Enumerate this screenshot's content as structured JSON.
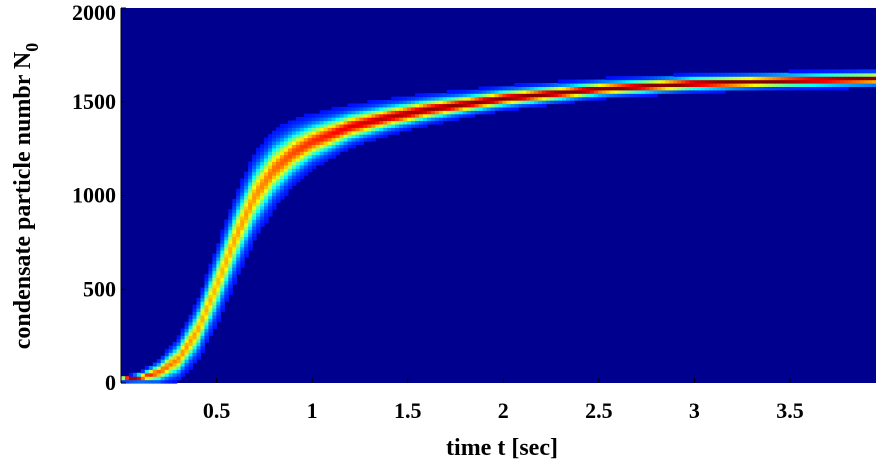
{
  "chart_data": {
    "type": "heatmap",
    "title": "",
    "xlabel": "time t [sec]",
    "ylabel": "condensate particle numbr N",
    "ylabel_subscript": "0",
    "xlim": [
      0,
      3.95
    ],
    "ylim": [
      0,
      2000
    ],
    "x_ticks": [
      "0.5",
      "1",
      "1.5",
      "2",
      "2.5",
      "3",
      "3.5"
    ],
    "y_ticks": [
      "0",
      "500",
      "1000",
      "1500",
      "2000"
    ],
    "x_tick_values": [
      0.5,
      1,
      1.5,
      2,
      2.5,
      3,
      3.5
    ],
    "y_tick_values": [
      0,
      500,
      1000,
      1500,
      2000
    ],
    "colormap": "jet",
    "background_color": "#00008f",
    "grid": false,
    "series": [
      {
        "x": [
          0.0,
          0.1,
          0.2,
          0.3,
          0.4,
          0.5,
          0.6,
          0.7,
          0.8,
          0.9,
          1.0,
          1.2,
          1.4,
          1.6,
          1.8,
          2.0,
          2.5,
          3.0,
          3.5,
          3.95
        ],
        "mean": [
          20,
          30,
          60,
          130,
          280,
          520,
          780,
          1000,
          1140,
          1230,
          1290,
          1370,
          1420,
          1460,
          1490,
          1520,
          1570,
          1600,
          1615,
          1625
        ],
        "width": [
          10,
          25,
          60,
          100,
          140,
          180,
          200,
          200,
          180,
          150,
          125,
          95,
          80,
          70,
          60,
          55,
          45,
          42,
          40,
          40
        ],
        "peak": [
          1.0,
          0.82,
          0.7,
          0.65,
          0.62,
          0.6,
          0.62,
          0.64,
          0.68,
          0.72,
          0.75,
          0.82,
          0.87,
          0.9,
          0.92,
          0.93,
          0.94,
          0.95,
          0.95,
          0.95
        ]
      }
    ]
  }
}
